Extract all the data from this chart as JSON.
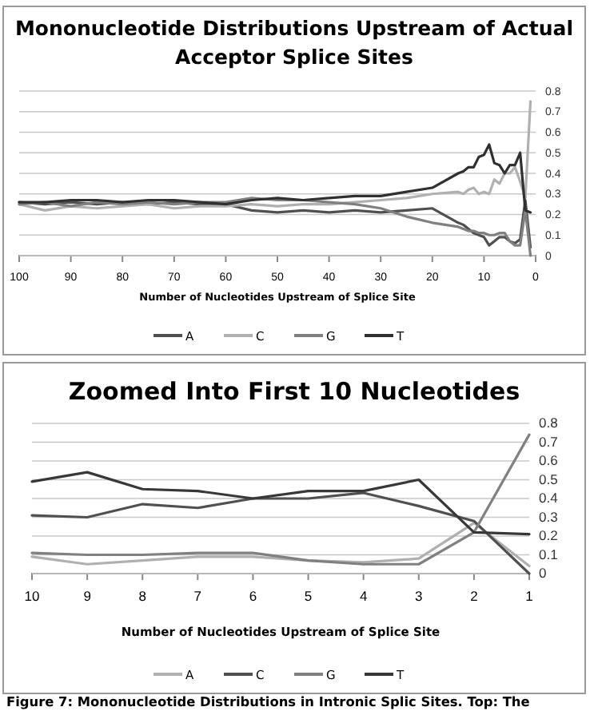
{
  "chart_data": [
    {
      "type": "line",
      "title": "Mononucleotide Distributions Upstream of Actual Acceptor Splice Sites",
      "xlabel": "Number of Nucleotides Upstream of Splice Site",
      "x": [
        100,
        95,
        90,
        85,
        80,
        75,
        70,
        65,
        60,
        55,
        50,
        45,
        40,
        35,
        30,
        25,
        20,
        15,
        14,
        13,
        12,
        11,
        10,
        9,
        8,
        7,
        6,
        5,
        4,
        3,
        2,
        1
      ],
      "xlim": [
        100,
        0
      ],
      "xticks": [
        100,
        90,
        80,
        70,
        60,
        50,
        40,
        30,
        20,
        10,
        0
      ],
      "ylim": [
        0,
        0.8
      ],
      "yticks": [
        0,
        0.1,
        0.2,
        0.3,
        0.4,
        0.5,
        0.6,
        0.7,
        0.8
      ],
      "grid": "y",
      "legend": "bottom",
      "marker": "none",
      "line_style": "solid",
      "series": [
        {
          "name": "A",
          "color": "#505050",
          "values": [
            0.26,
            0.25,
            0.26,
            0.25,
            0.26,
            0.25,
            0.26,
            0.25,
            0.25,
            0.22,
            0.21,
            0.22,
            0.21,
            0.22,
            0.21,
            0.22,
            0.23,
            0.16,
            0.15,
            0.13,
            0.11,
            0.1,
            0.09,
            0.05,
            0.07,
            0.09,
            0.09,
            0.07,
            0.06,
            0.08,
            0.27,
            0.04
          ]
        },
        {
          "name": "C",
          "color": "#b0b0b0",
          "values": [
            0.25,
            0.22,
            0.24,
            0.23,
            0.24,
            0.25,
            0.23,
            0.24,
            0.24,
            0.25,
            0.24,
            0.25,
            0.25,
            0.26,
            0.27,
            0.28,
            0.3,
            0.31,
            0.3,
            0.32,
            0.33,
            0.3,
            0.31,
            0.3,
            0.37,
            0.35,
            0.4,
            0.4,
            0.43,
            0.36,
            0.28,
            0.75
          ]
        },
        {
          "name": "G",
          "color": "#808080",
          "values": [
            0.25,
            0.26,
            0.24,
            0.26,
            0.25,
            0.26,
            0.25,
            0.26,
            0.26,
            0.28,
            0.27,
            0.27,
            0.26,
            0.25,
            0.23,
            0.19,
            0.16,
            0.14,
            0.13,
            0.12,
            0.12,
            0.11,
            0.11,
            0.1,
            0.1,
            0.11,
            0.11,
            0.07,
            0.05,
            0.05,
            0.22,
            0.0
          ]
        },
        {
          "name": "T",
          "color": "#303030",
          "values": [
            0.26,
            0.26,
            0.27,
            0.27,
            0.26,
            0.27,
            0.27,
            0.26,
            0.25,
            0.27,
            0.28,
            0.27,
            0.28,
            0.29,
            0.29,
            0.31,
            0.33,
            0.4,
            0.41,
            0.43,
            0.43,
            0.48,
            0.49,
            0.54,
            0.45,
            0.44,
            0.4,
            0.44,
            0.44,
            0.5,
            0.22,
            0.21
          ]
        }
      ]
    },
    {
      "type": "line",
      "title": "Zoomed Into First 10 Nucleotides",
      "xlabel": "Number of Nucleotides Upstream of Splice Site",
      "categories": [
        "10",
        "9",
        "8",
        "7",
        "6",
        "5",
        "4",
        "3",
        "2",
        "1"
      ],
      "ylim": [
        0,
        0.8
      ],
      "yticks": [
        0,
        0.1,
        0.2,
        0.3,
        0.4,
        0.5,
        0.6,
        0.7,
        0.8
      ],
      "grid": "y",
      "legend": "bottom",
      "marker": "none",
      "line_style": "solid",
      "annotations": [
        "Figure 7: Mononucleotide Distributions in Intronic Splic Sites. Top: The"
      ],
      "series": [
        {
          "name": "A",
          "color": "#b0b0b0",
          "values": [
            0.09,
            0.05,
            0.07,
            0.09,
            0.09,
            0.07,
            0.06,
            0.08,
            0.27,
            0.04
          ]
        },
        {
          "name": "C",
          "color": "#505050",
          "values": [
            0.31,
            0.3,
            0.37,
            0.35,
            0.4,
            0.4,
            0.43,
            0.36,
            0.28,
            0.0
          ]
        },
        {
          "name": "G",
          "color": "#808080",
          "values": [
            0.11,
            0.1,
            0.1,
            0.11,
            0.11,
            0.07,
            0.05,
            0.05,
            0.22,
            0.74
          ]
        },
        {
          "name": "T",
          "color": "#383838",
          "values": [
            0.49,
            0.54,
            0.45,
            0.44,
            0.4,
            0.44,
            0.44,
            0.5,
            0.22,
            0.21
          ]
        }
      ]
    }
  ]
}
